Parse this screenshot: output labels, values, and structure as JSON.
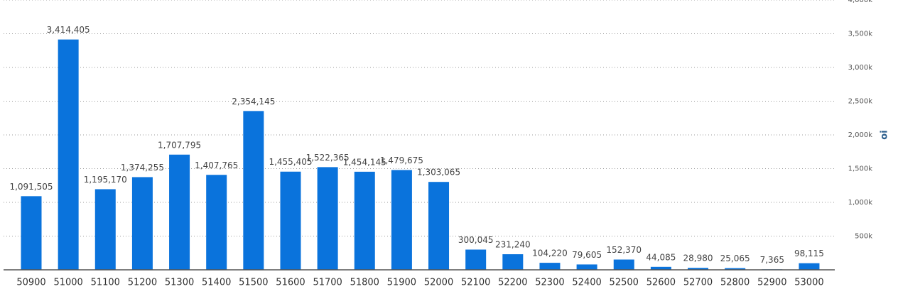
{
  "chart_data": {
    "type": "bar",
    "y_label": "oi",
    "categories": [
      "50900",
      "51000",
      "51100",
      "51200",
      "51300",
      "51400",
      "51500",
      "51600",
      "51700",
      "51800",
      "51900",
      "52000",
      "52100",
      "52200",
      "52300",
      "52400",
      "52500",
      "52600",
      "52700",
      "52800",
      "52900",
      "53000"
    ],
    "values": [
      1091505,
      3414405,
      1195170,
      1374255,
      1707795,
      1407765,
      2354145,
      1455405,
      1522365,
      1454145,
      1479675,
      1303065,
      300045,
      231240,
      104220,
      79605,
      152370,
      44085,
      28980,
      25065,
      7365,
      98115
    ],
    "value_labels": [
      "1,091,505",
      "3,414,405",
      "1,195,170",
      "1,374,255",
      "1,707,795",
      "1,407,765",
      "2,354,145",
      "1,455,405",
      "1,522,365",
      "1,454,145",
      "1,479,675",
      "1,303,065",
      "300,045",
      "231,240",
      "104,220",
      "79,605",
      "152,370",
      "44,085",
      "28,980",
      "25,065",
      "7,365",
      "98,115"
    ],
    "color": "#0a73dc",
    "ylim": [
      0,
      4000000
    ],
    "yticks": [
      {
        "value": 500000,
        "label": "500k"
      },
      {
        "value": 1000000,
        "label": "1,000k"
      },
      {
        "value": 1500000,
        "label": "1,500k"
      },
      {
        "value": 2000000,
        "label": "2,000k"
      },
      {
        "value": 2500000,
        "label": "2,500k"
      },
      {
        "value": 3000000,
        "label": "3,000k"
      },
      {
        "value": 3500000,
        "label": "3,500k"
      },
      {
        "value": 4000000,
        "label": "4,000k"
      }
    ],
    "grid": true
  }
}
